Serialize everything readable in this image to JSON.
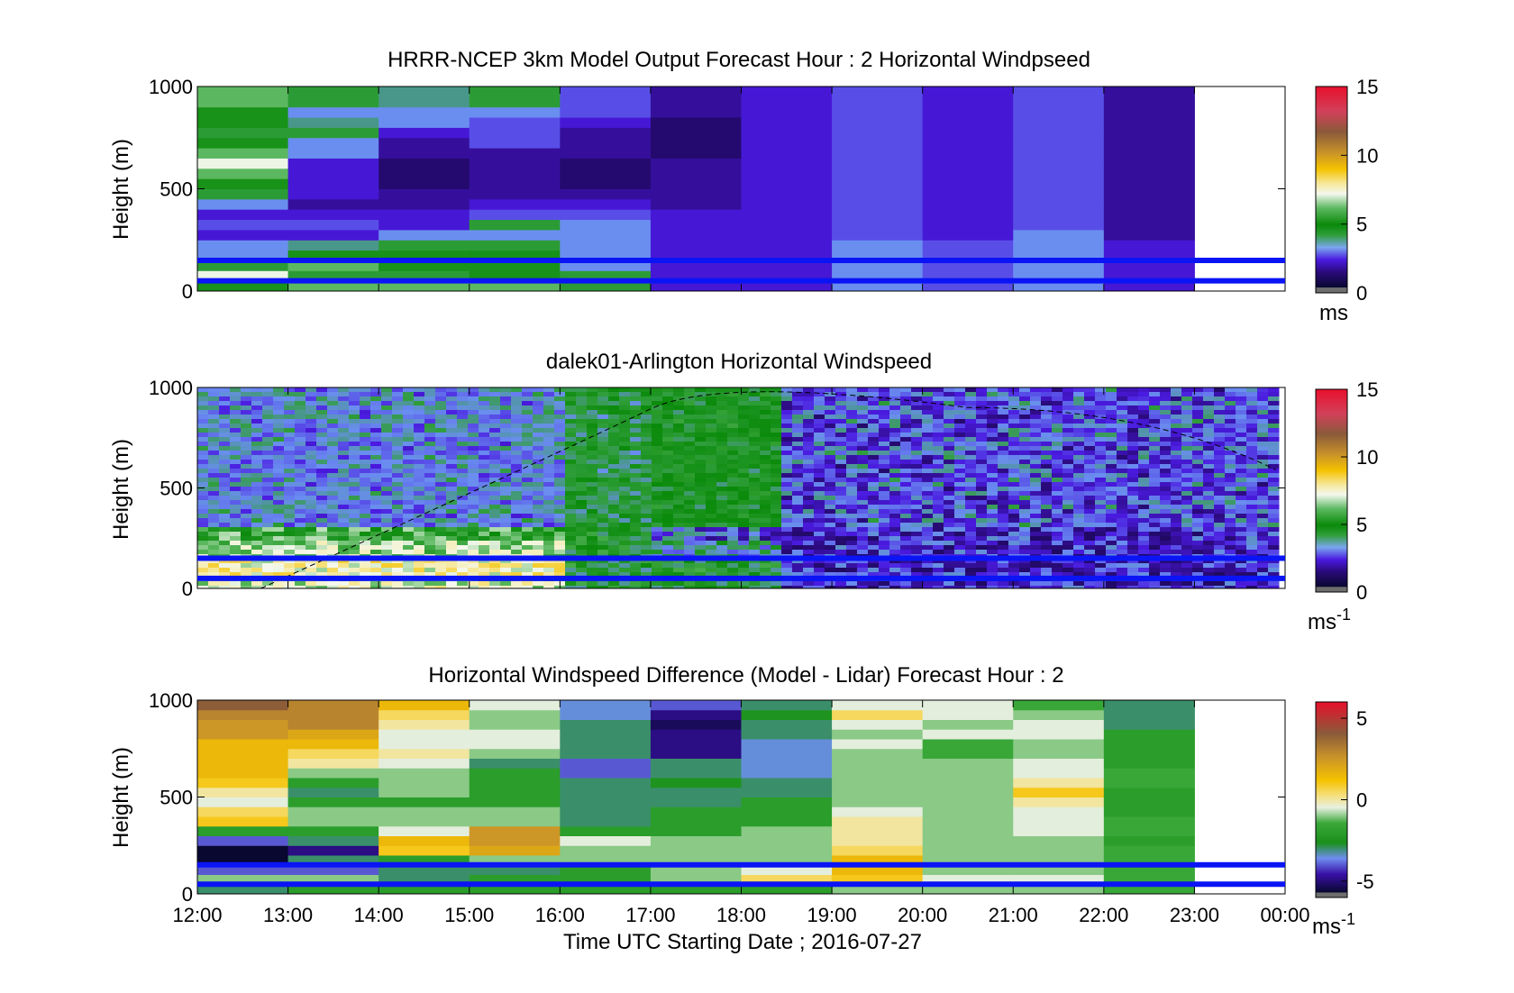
{
  "figure": {
    "xlabel": "Time UTC  Starting Date ; 2016-07-27",
    "x_ticks": [
      "12:00",
      "13:00",
      "14:00",
      "15:00",
      "16:00",
      "17:00",
      "18:00",
      "19:00",
      "20:00",
      "21:00",
      "22:00",
      "23:00",
      "00:00"
    ],
    "reference_lines_m": [
      50,
      150
    ],
    "reference_line_color": "#0a14f5"
  },
  "chart_data": [
    {
      "type": "heatmap",
      "title": "HRRR-NCEP 3km Model Output   Forecast Hour : 2 Horizontal Windpseed",
      "ylabel": "Height (m)",
      "ylim": [
        0,
        1000
      ],
      "y_ticks": [
        "0",
        "500",
        "1000"
      ],
      "colorbar": {
        "ticks": [
          "0",
          "5",
          "10",
          "15"
        ],
        "range": [
          0,
          15
        ],
        "unit": "ms"
      },
      "x_hours": [
        12,
        13,
        14,
        15,
        16,
        17,
        18,
        19,
        20,
        21,
        22
      ],
      "profile_heights_m": [
        25,
        75,
        125,
        175,
        225,
        275,
        325,
        375,
        425,
        475,
        525,
        575,
        625,
        675,
        725,
        775,
        825,
        875,
        925,
        975
      ],
      "values": [
        [
          5,
          7,
          4,
          3,
          3,
          2,
          2.5,
          2,
          3,
          4,
          5,
          6,
          7,
          6,
          5,
          4,
          5,
          5,
          6,
          6
        ],
        [
          6,
          4,
          6,
          5,
          3.5,
          2,
          2.5,
          2,
          1.5,
          2,
          2,
          2,
          2,
          3,
          3,
          4,
          3.5,
          3,
          4,
          4
        ],
        [
          6,
          4,
          5,
          5,
          4,
          3,
          2,
          2,
          1.5,
          1.5,
          1,
          1,
          1,
          1.5,
          1.5,
          2,
          3,
          3,
          3.5,
          3.5
        ],
        [
          6,
          5,
          5,
          4.5,
          4,
          3,
          4,
          2.5,
          2,
          1.5,
          1.5,
          1.5,
          1.5,
          1.5,
          2.5,
          2.5,
          2.5,
          3,
          4,
          4
        ],
        [
          4,
          4,
          3,
          3,
          3,
          3,
          3,
          2.5,
          2,
          1.5,
          1,
          1,
          1,
          1.5,
          1.5,
          1.5,
          2,
          2.5,
          2.5,
          2.5
        ],
        [
          2,
          2,
          2,
          2,
          2,
          2,
          2,
          2,
          1.5,
          1.5,
          1.5,
          1.5,
          1.5,
          1,
          1,
          1,
          1,
          1.5,
          1.5,
          1.5
        ],
        [
          2,
          2,
          2,
          2,
          2,
          2,
          2,
          2,
          2,
          2,
          2,
          2,
          2,
          2,
          2,
          2,
          2,
          2,
          2,
          2
        ],
        [
          3,
          3,
          3,
          3,
          3,
          2.5,
          2.5,
          2.5,
          2.5,
          2.5,
          2.5,
          2.5,
          2.5,
          2.5,
          2.5,
          2.5,
          2.5,
          2.5,
          2.5,
          2.5
        ],
        [
          2.5,
          2.5,
          2.5,
          2.5,
          2.5,
          2,
          2,
          2,
          2,
          2,
          2,
          2,
          2,
          2,
          2,
          2,
          2,
          2,
          2,
          2
        ],
        [
          3,
          3,
          3,
          3,
          3,
          3,
          2.5,
          2.5,
          2.5,
          2.5,
          2.5,
          2.5,
          2.5,
          2.5,
          2.5,
          2.5,
          2.5,
          2.5,
          2.5,
          2.5
        ],
        [
          2,
          2,
          2,
          2,
          2,
          1.5,
          1.5,
          1.5,
          1.5,
          1.5,
          1.5,
          1.5,
          1.5,
          1.5,
          1.5,
          1.5,
          1.5,
          1.5,
          1.5,
          1.5
        ]
      ]
    },
    {
      "type": "heatmap",
      "title": "dalek01-Arlington  Horizontal Windspeed",
      "ylabel": "Height (m)",
      "ylim": [
        0,
        1000
      ],
      "y_ticks": [
        "0",
        "500",
        "1000"
      ],
      "colorbar": {
        "ticks": [
          "0",
          "5",
          "10",
          "15"
        ],
        "range": [
          0,
          15
        ],
        "unit": "ms",
        "unit_sup": "-1"
      },
      "x_range_hours": [
        12,
        23.9
      ],
      "lidar_segments": [
        {
          "x_hours": [
            12,
            16
          ],
          "low_band": [
            7,
            7.5,
            6.5,
            5.5
          ],
          "upper_base": [
            2.5,
            3.5
          ]
        },
        {
          "x_hours": [
            16,
            17
          ],
          "low_band": [
            4.5,
            4.5,
            4.5,
            4.5
          ],
          "upper_base": [
            3.5,
            4.5
          ]
        },
        {
          "x_hours": [
            17,
            18.4
          ],
          "low_band": [
            4.5,
            4.5,
            3.5,
            2.5
          ],
          "upper_base": [
            4.0,
            5.0
          ]
        },
        {
          "x_hours": [
            18.4,
            24
          ],
          "low_band": [
            2,
            2,
            2,
            2
          ],
          "upper_base": [
            1.5,
            3.5
          ]
        }
      ],
      "reference_curve": {
        "style": "dashed",
        "x_hours": [
          12.7,
          20.5,
          23.9
        ],
        "height_m": [
          0,
          900,
          590
        ]
      }
    },
    {
      "type": "heatmap",
      "title": "Horizontal Windspeed Difference (Model - Lidar) Forecast Hour : 2",
      "ylabel": "Height (m)",
      "ylim": [
        0,
        1000
      ],
      "y_ticks": [
        "0",
        "500",
        "1000"
      ],
      "colorbar": {
        "ticks": [
          "-5",
          "0",
          "5"
        ],
        "range": [
          -6,
          6
        ],
        "unit": "ms",
        "unit_sup": "-1"
      },
      "x_hours": [
        12,
        13,
        14,
        15,
        16,
        17,
        18,
        19,
        20,
        21,
        22
      ],
      "profile_heights_m": [
        25,
        75,
        125,
        175,
        225,
        275,
        325,
        375,
        425,
        475,
        525,
        575,
        625,
        675,
        725,
        775,
        825,
        875,
        925,
        975
      ],
      "values": [
        [
          -3,
          -1,
          -4,
          -6,
          -6,
          -4,
          -2,
          1,
          0.5,
          -0.5,
          0,
          1,
          1.5,
          1.5,
          1.5,
          1.5,
          2.5,
          2.5,
          3,
          4
        ],
        [
          -2,
          -1,
          -4,
          -3,
          -5,
          -3,
          -2,
          -1,
          -1,
          -2,
          -3,
          -2,
          -1,
          0,
          0.5,
          1.5,
          2,
          3,
          3,
          3
        ],
        [
          -2,
          -3,
          -3,
          -2,
          1,
          1.5,
          -0.5,
          -1,
          -1,
          -2,
          -1,
          -1,
          -1,
          -0.5,
          0,
          -0.5,
          -0.5,
          0,
          0.5,
          1.5
        ],
        [
          -2,
          -2,
          -3,
          -1,
          2,
          2.5,
          2.5,
          -1,
          -1,
          -2,
          -2,
          -2,
          -2,
          -3,
          -1,
          -0.5,
          -0.5,
          -1,
          -1,
          -0.5
        ],
        [
          -2,
          -2,
          -2,
          -1,
          -1,
          -0.5,
          -2,
          -3,
          -3,
          -3,
          -3,
          -3,
          -4,
          -4,
          -3,
          -3,
          -3,
          -3,
          -3.5,
          -3.5
        ],
        [
          -2,
          -1,
          -1,
          -1,
          -1,
          -1,
          -2,
          -2,
          -2,
          -3,
          -3,
          -2.5,
          -3,
          -3,
          -5,
          -5,
          -5,
          -5.5,
          -5,
          -4
        ],
        [
          -2,
          0.5,
          -0.5,
          -1,
          -1,
          -1,
          -1,
          -2,
          -2,
          -2,
          -3,
          -3,
          -3.5,
          -3.5,
          -3.5,
          -3.5,
          -3,
          -3,
          -2.5,
          -3
        ],
        [
          -1,
          1,
          1.5,
          1.5,
          0.5,
          0,
          0,
          0,
          -0.5,
          -1,
          -1,
          -1,
          -1,
          -1,
          -1,
          -0.5,
          -1,
          -0.5,
          0.5,
          -0.5
        ],
        [
          -1,
          -0.5,
          -1,
          -1,
          -1,
          -1,
          -1,
          -1,
          -1,
          -1,
          -1,
          -1,
          -1,
          -1,
          -1.5,
          -1.5,
          -0.5,
          -1,
          -0.5,
          -0.5
        ],
        [
          -1,
          -0.5,
          -1,
          -1,
          -1,
          -1,
          -0.5,
          -0.5,
          -0.5,
          0,
          1,
          0,
          -0.5,
          -0.5,
          -1,
          -1,
          -0.5,
          -0.5,
          -1,
          -1.5
        ],
        [
          -1.5,
          -1.5,
          -1.5,
          -1.5,
          -1.5,
          -2,
          -1.5,
          -1.5,
          -2,
          -2,
          -2,
          -1.5,
          -1.5,
          -2,
          -2,
          -2,
          -2,
          -3,
          -3,
          -3
        ]
      ]
    }
  ]
}
